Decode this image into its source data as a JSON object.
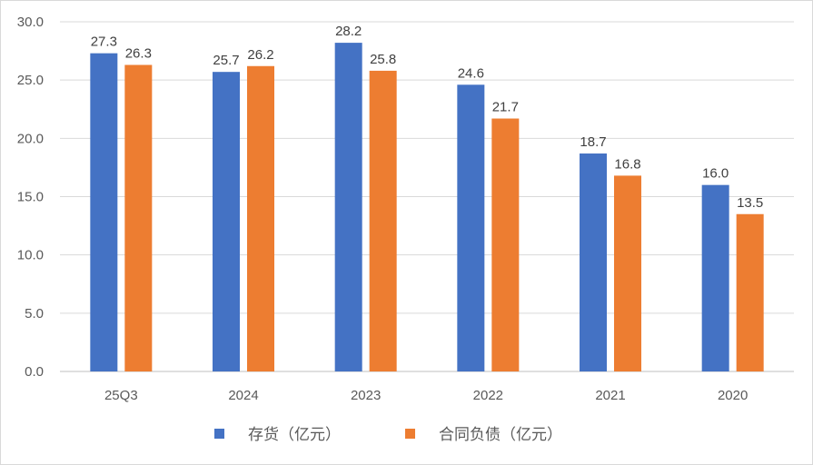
{
  "chart_data": {
    "type": "bar",
    "categories": [
      "25Q3",
      "2024",
      "2023",
      "2022",
      "2021",
      "2020"
    ],
    "series": [
      {
        "name": "存货（亿元）",
        "color": "#4472C4",
        "values": [
          27.3,
          25.7,
          28.2,
          24.6,
          18.7,
          16.0
        ],
        "labels": [
          "27.3",
          "25.7",
          "28.2",
          "24.6",
          "18.7",
          "16.0"
        ]
      },
      {
        "name": "合同负债（亿元）",
        "color": "#ED7D31",
        "values": [
          26.3,
          26.2,
          25.8,
          21.7,
          16.8,
          13.5
        ],
        "labels": [
          "26.3",
          "26.2",
          "25.8",
          "21.7",
          "16.8",
          "13.5"
        ]
      }
    ],
    "ylim": [
      0,
      30
    ],
    "yticks": [
      "0.0",
      "5.0",
      "10.0",
      "15.0",
      "20.0",
      "25.0",
      "30.0"
    ],
    "grid": true,
    "legend_position": "bottom",
    "title": "",
    "xlabel": "",
    "ylabel": ""
  }
}
